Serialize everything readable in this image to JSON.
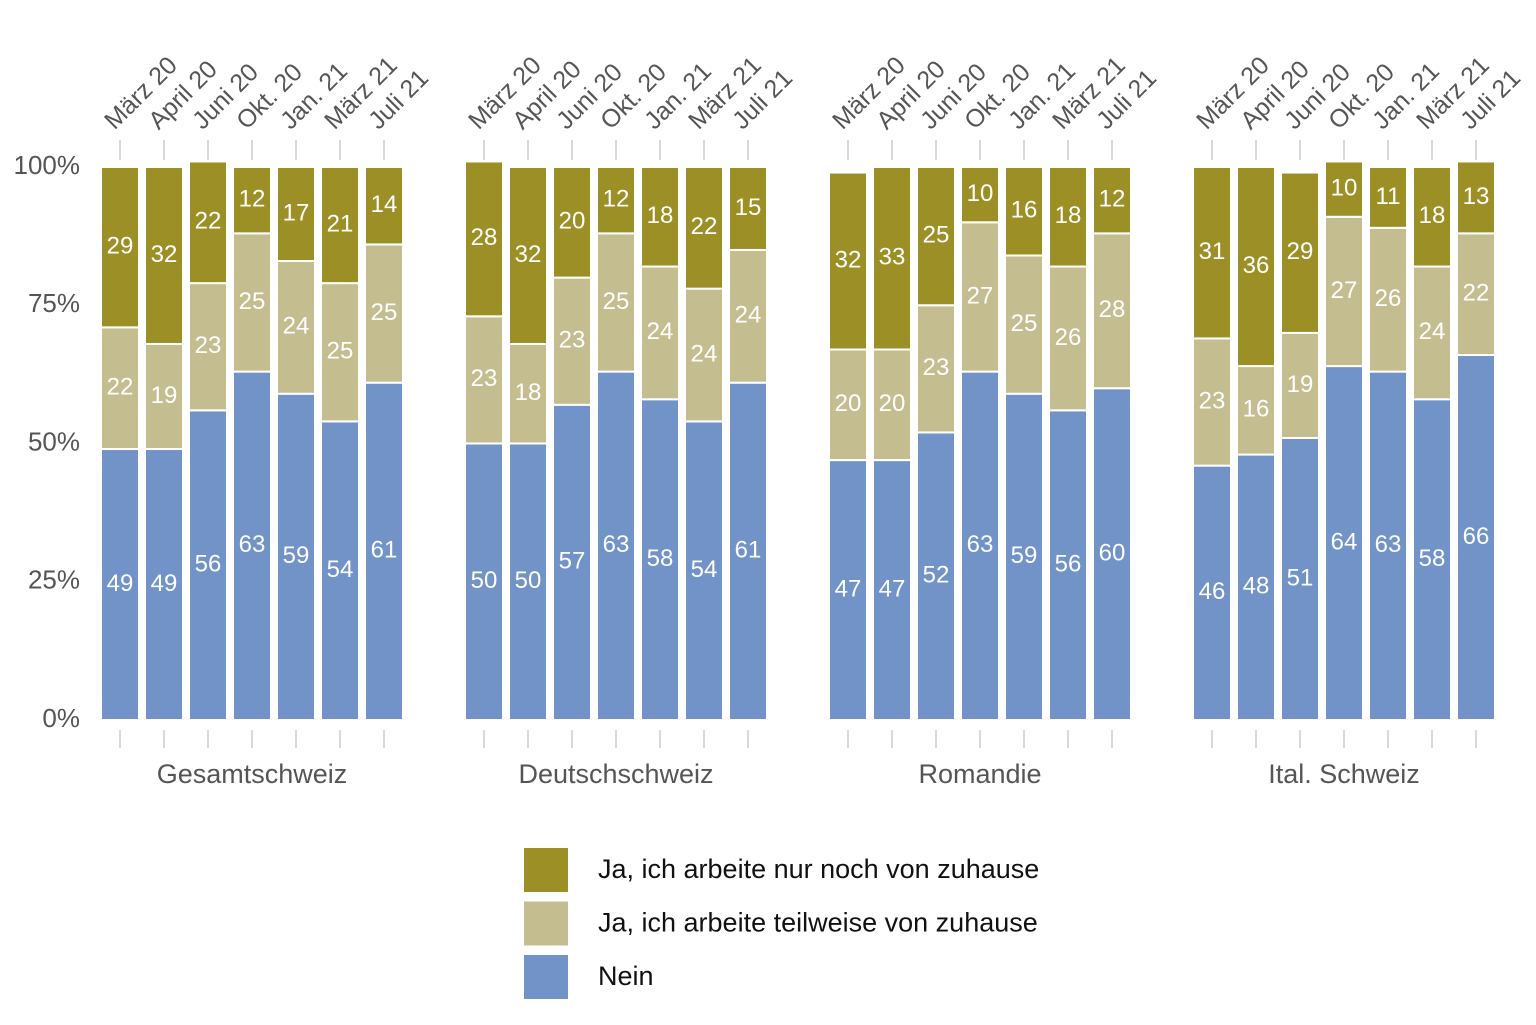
{
  "chart_data": {
    "type": "bar",
    "stacked": true,
    "facets": [
      "Gesamtschweiz",
      "Deutschschweiz",
      "Romandie",
      "Ital. Schweiz"
    ],
    "categories": [
      "März 20",
      "April 20",
      "Juni 20",
      "Okt. 20",
      "Jan. 21",
      "März 21",
      "Juli 21"
    ],
    "series": [
      {
        "name": "Nein",
        "color": "#7193c8",
        "values": [
          [
            49,
            49,
            56,
            63,
            59,
            54,
            61
          ],
          [
            50,
            50,
            57,
            63,
            58,
            54,
            61
          ],
          [
            47,
            47,
            52,
            63,
            59,
            56,
            60
          ],
          [
            46,
            48,
            51,
            64,
            63,
            58,
            66
          ]
        ]
      },
      {
        "name": "Ja, ich arbeite teilweise von zuhause",
        "color": "#c4bd8f",
        "values": [
          [
            22,
            19,
            23,
            25,
            24,
            25,
            25
          ],
          [
            23,
            18,
            23,
            25,
            24,
            24,
            24
          ],
          [
            20,
            20,
            23,
            27,
            25,
            26,
            28
          ],
          [
            23,
            16,
            19,
            27,
            26,
            24,
            22
          ]
        ]
      },
      {
        "name": "Ja, ich arbeite nur noch von zuhause",
        "color": "#9b8f25",
        "values": [
          [
            29,
            32,
            22,
            12,
            17,
            21,
            14
          ],
          [
            28,
            32,
            20,
            12,
            18,
            22,
            15
          ],
          [
            32,
            33,
            25,
            10,
            16,
            18,
            12
          ],
          [
            31,
            36,
            29,
            10,
            11,
            18,
            13
          ]
        ]
      }
    ],
    "ylim": [
      0,
      100
    ],
    "yticks": [
      {
        "value": 0,
        "label": "0%"
      },
      {
        "value": 25,
        "label": "25%"
      },
      {
        "value": 50,
        "label": "50%"
      },
      {
        "value": 75,
        "label": "75%"
      },
      {
        "value": 100,
        "label": "100%"
      }
    ]
  }
}
